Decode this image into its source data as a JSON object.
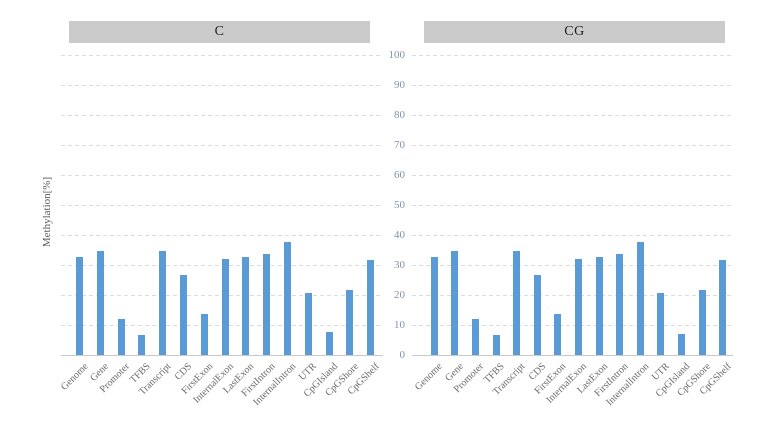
{
  "chart_data": {
    "type": "bar",
    "layout": "two side-by-side panels with shared y tick labels centered between them, dashed horizontal gridlines, category labels rotated 45 degrees",
    "categories": [
      "Genome",
      "Gene",
      "Promoter",
      "TFBS",
      "Transcript",
      "CDS",
      "FirstExon",
      "InternalExon",
      "LastExon",
      "FirstIntron",
      "InternalIntron",
      "UTR",
      "CpGIsland",
      "CpGShore",
      "CpGShelf"
    ],
    "series": [
      {
        "name": "C",
        "values": [
          32.5,
          34.5,
          12,
          6.5,
          34.5,
          26.5,
          13.5,
          32,
          32.5,
          33.5,
          37.5,
          20.5,
          7.5,
          21.5,
          31.5
        ]
      },
      {
        "name": "CG",
        "values": [
          32.5,
          34.5,
          12,
          6.5,
          34.5,
          26.5,
          13.5,
          32,
          32.5,
          33.5,
          37.5,
          20.5,
          7,
          21.5,
          31.5
        ]
      }
    ],
    "title": "",
    "xlabel": "",
    "ylabel": "Methylation[%]",
    "ylim": [
      0,
      100
    ],
    "yticks": [
      0,
      10,
      20,
      30,
      40,
      50,
      60,
      70,
      80,
      90,
      100
    ],
    "grid": true,
    "gridline_style": "dashed",
    "legend": "none (panel titles in gray header strips)",
    "colors": {
      "bar": "#5B9BD5",
      "panel_header_bg": "#CBCBCB",
      "panel_header_text": "#1F1F1F",
      "gridline": "#DCDCDC",
      "axis_line": "#C8C8C8",
      "ytick_text": "#8191A9",
      "xtick_text": "#6A6A6A",
      "ylabel_text": "#5A5A5A"
    }
  }
}
